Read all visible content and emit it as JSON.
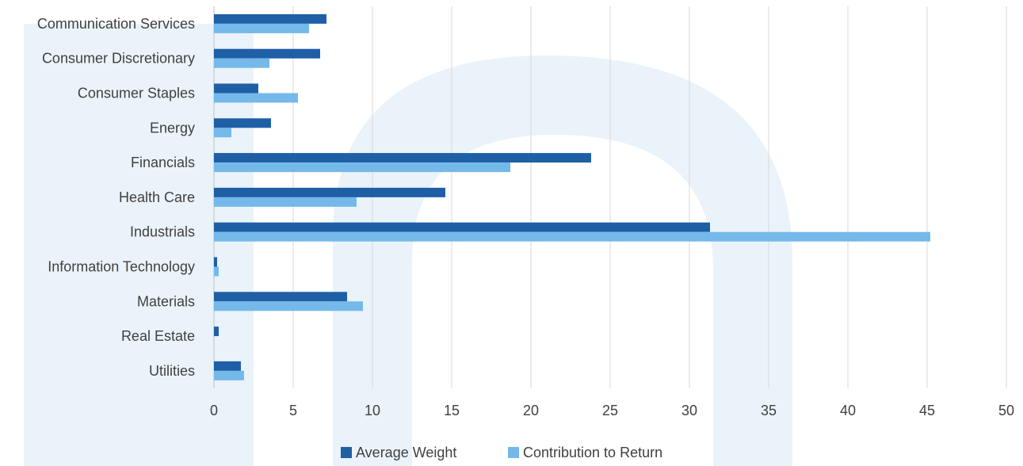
{
  "chart_data": {
    "type": "bar",
    "orientation": "horizontal",
    "categories": [
      "Communication Services",
      "Consumer Discretionary",
      "Consumer Staples",
      "Energy",
      "Financials",
      "Health Care",
      "Industrials",
      "Information Technology",
      "Materials",
      "Real Estate",
      "Utilities"
    ],
    "series": [
      {
        "name": "Average Weight",
        "color": "#1f5fa6",
        "values": [
          7.1,
          6.7,
          2.8,
          3.6,
          23.8,
          14.6,
          31.3,
          0.2,
          8.4,
          0.3,
          1.7
        ]
      },
      {
        "name": "Contribution to Return",
        "color": "#74b9ea",
        "values": [
          6.0,
          3.5,
          5.3,
          1.1,
          18.7,
          9.0,
          45.2,
          0.3,
          9.4,
          0.0,
          1.9
        ]
      }
    ],
    "xlim": [
      0,
      50
    ],
    "xticks": [
      0,
      5,
      10,
      15,
      20,
      25,
      30,
      35,
      40,
      45,
      50
    ],
    "grid": true,
    "legend_position": "bottom",
    "title": "",
    "xlabel": "",
    "ylabel": ""
  }
}
